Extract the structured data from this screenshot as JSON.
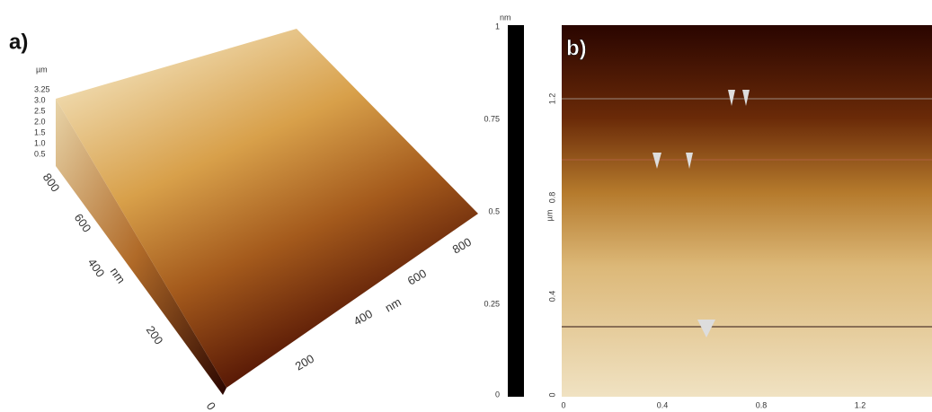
{
  "panel_a": {
    "label": "a)",
    "z_axis": {
      "unit": "µm",
      "ticks": [
        "3.25",
        "3.0",
        "2.5",
        "2.0",
        "1.5",
        "1.0",
        "0.5"
      ]
    },
    "x_axis": {
      "unit": "nm",
      "ticks": [
        "200",
        "400",
        "600",
        "800"
      ]
    },
    "y_axis": {
      "unit": "nm",
      "ticks": [
        "0",
        "200",
        "400",
        "600",
        "800"
      ]
    }
  },
  "panel_b": {
    "label": "b)",
    "colorbar": {
      "unit": "nm",
      "ticks": [
        "1",
        "0.75",
        "0.5",
        "0.25",
        "0"
      ]
    },
    "y_axis": {
      "unit": "µm",
      "ticks": [
        "1.2",
        "0.8",
        "0.4",
        "0"
      ]
    },
    "x_axis": {
      "ticks": [
        "0",
        "0.4",
        "0.8",
        "1.2"
      ]
    }
  }
}
